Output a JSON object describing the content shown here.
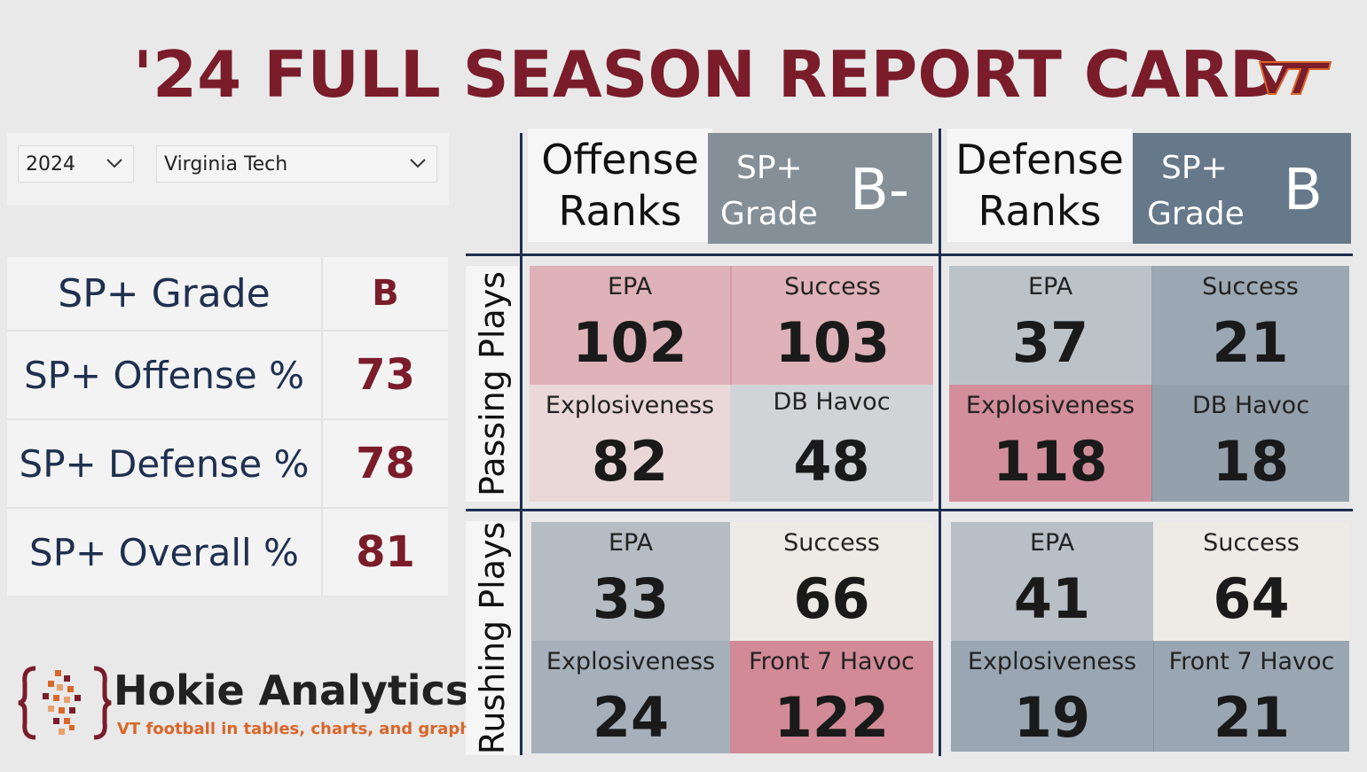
{
  "title": "'24 FULL SEASON REPORT CARD",
  "logo": "VT",
  "colors": {
    "maroon": "#7a1c2a",
    "navy": "#1e2f4f",
    "orange": "#d9662a"
  },
  "filters": {
    "year": "2024",
    "team": "Virginia Tech"
  },
  "summary": [
    {
      "label": "SP+ Grade",
      "value": "B"
    },
    {
      "label": "SP+ Offense %",
      "value": "73"
    },
    {
      "label": "SP+ Defense %",
      "value": "78"
    },
    {
      "label": "SP+ Overall %",
      "value": "81"
    }
  ],
  "offense": {
    "title1": "Offense",
    "title2": "Ranks",
    "grade_label1": "SP+",
    "grade_label2": "Grade",
    "grade": "B-"
  },
  "defense": {
    "title1": "Defense",
    "title2": "Ranks",
    "grade_label1": "SP+",
    "grade_label2": "Grade",
    "grade": "B"
  },
  "rows": {
    "passing": "Passing Plays",
    "rushing": "Rushing Plays"
  },
  "off_pass": [
    {
      "metric": "EPA",
      "rank": "102"
    },
    {
      "metric": "Success",
      "rank": "103"
    },
    {
      "metric": "Explosiveness",
      "rank": "82"
    },
    {
      "metric": "DB Havoc",
      "rank": "48"
    }
  ],
  "def_pass": [
    {
      "metric": "EPA",
      "rank": "37"
    },
    {
      "metric": "Success",
      "rank": "21"
    },
    {
      "metric": "Explosiveness",
      "rank": "118"
    },
    {
      "metric": "DB Havoc",
      "rank": "18"
    }
  ],
  "off_rush": [
    {
      "metric": "EPA",
      "rank": "33"
    },
    {
      "metric": "Success",
      "rank": "66"
    },
    {
      "metric": "Explosiveness",
      "rank": "24"
    },
    {
      "metric": "Front 7 Havoc",
      "rank": "122"
    }
  ],
  "def_rush": [
    {
      "metric": "EPA",
      "rank": "41"
    },
    {
      "metric": "Success",
      "rank": "64"
    },
    {
      "metric": "Explosiveness",
      "rank": "19"
    },
    {
      "metric": "Front 7 Havoc",
      "rank": "21"
    }
  ],
  "brand": {
    "name": "Hokie Analytics",
    "tagline": "VT football in tables, charts, and graphs"
  }
}
